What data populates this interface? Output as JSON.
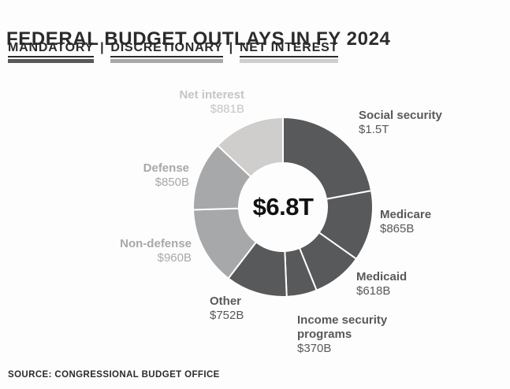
{
  "header": {
    "title": "FEDERAL BUDGET OUTLAYS IN FY 2024",
    "legend_separator": "|",
    "legend": [
      {
        "label": "MANDATORY",
        "group": "mandatory"
      },
      {
        "label": "DISCRETIONARY",
        "group": "discretionary"
      },
      {
        "label": "NET INTEREST",
        "group": "net_interest"
      }
    ]
  },
  "chart_data": {
    "type": "pie",
    "style": "donut",
    "title": "FEDERAL BUDGET OUTLAYS IN FY 2024",
    "center_total_label": "$6.8T",
    "start_angle_deg": 0,
    "direction": "clockwise",
    "unit": "billions USD",
    "segments": [
      {
        "label": "Social security",
        "value_label": "$1.5T",
        "value": 1500,
        "group": "mandatory"
      },
      {
        "label": "Medicare",
        "value_label": "$865B",
        "value": 865,
        "group": "mandatory"
      },
      {
        "label": "Medicaid",
        "value_label": "$618B",
        "value": 618,
        "group": "mandatory"
      },
      {
        "label": "Income security programs",
        "value_label": "$370B",
        "value": 370,
        "group": "mandatory"
      },
      {
        "label": "Other",
        "value_label": "$752B",
        "value": 752,
        "group": "mandatory"
      },
      {
        "label": "Non-defense",
        "value_label": "$960B",
        "value": 960,
        "group": "discretionary"
      },
      {
        "label": "Defense",
        "value_label": "$850B",
        "value": 850,
        "group": "discretionary"
      },
      {
        "label": "Net interest",
        "value_label": "$881B",
        "value": 881,
        "group": "net_interest"
      }
    ],
    "group_colors": {
      "mandatory": "#58595b",
      "discretionary": "#a7a8aa",
      "net_interest": "#cfcecc"
    },
    "label_colors": {
      "mandatory": "#58595b",
      "discretionary": "#a7a8aa",
      "net_interest": "#c6c5c3"
    }
  },
  "footer": {
    "source": "SOURCE: CONGRESSIONAL BUDGET OFFICE"
  }
}
